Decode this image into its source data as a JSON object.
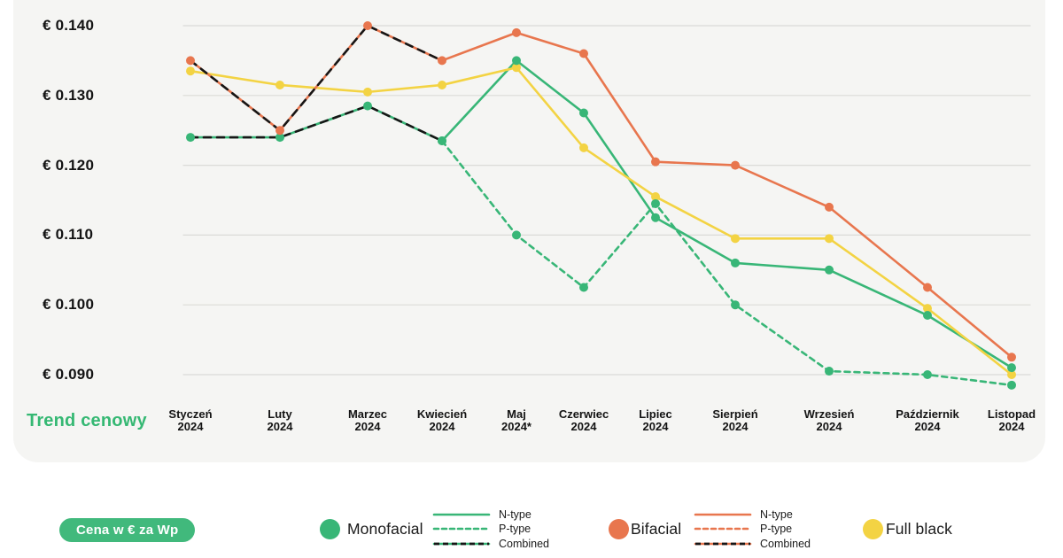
{
  "title": {
    "text": "Trend cenowy",
    "color": "#35b873"
  },
  "unit_pill": {
    "label": "Cena w € za Wp",
    "background": "#41b97c",
    "text_color": "#ffffff"
  },
  "colors": {
    "monofacial": "#38b677",
    "bifacial": "#e8764e",
    "full_black": "#f3d343",
    "combined_overlay": "#161616",
    "gridline": "#dbdbd8",
    "card_background": "#f5f5f3",
    "axis_text": "#131313"
  },
  "y_axis": {
    "labels": [
      "€ 0.140",
      "€ 0.130",
      "€ 0.120",
      "€ 0.110",
      "€ 0.100",
      "€ 0.090"
    ]
  },
  "x_axis": {
    "months": [
      {
        "name": "Styczeń",
        "year": "2024"
      },
      {
        "name": "Luty",
        "year": "2024"
      },
      {
        "name": "Marzec",
        "year": "2024"
      },
      {
        "name": "Kwiecień",
        "year": "2024"
      },
      {
        "name": "Maj",
        "year": "2024*"
      },
      {
        "name": "Czerwiec",
        "year": "2024"
      },
      {
        "name": "Lipiec",
        "year": "2024"
      },
      {
        "name": "Sierpień",
        "year": "2024"
      },
      {
        "name": "Wrzesień",
        "year": "2024"
      },
      {
        "name": "Październik",
        "year": "2024"
      },
      {
        "name": "Listopad",
        "year": "2024"
      }
    ]
  },
  "legend": {
    "groups": [
      {
        "name": "Monofacial",
        "color": "#38b677",
        "entries": [
          {
            "label": "N-type",
            "style": "solid",
            "color": "#38b677"
          },
          {
            "label": "P-type",
            "style": "dashed",
            "color": "#38b677"
          },
          {
            "label": "Combined",
            "style": "combined",
            "color": "#38b677",
            "overlay_color": "#161616"
          }
        ]
      },
      {
        "name": "Bifacial",
        "color": "#e8764e",
        "entries": [
          {
            "label": "N-type",
            "style": "solid",
            "color": "#e8764e"
          },
          {
            "label": "P-type",
            "style": "dashed",
            "color": "#e8764e"
          },
          {
            "label": "Combined",
            "style": "combined",
            "color": "#e8764e",
            "overlay_color": "#161616"
          }
        ]
      },
      {
        "name": "Full black",
        "color": "#f3d343",
        "entries": []
      }
    ]
  },
  "chart_data": {
    "type": "line",
    "title": "Trend cenowy",
    "unit": "Cena w € za Wp",
    "x_categories": [
      "Styczeń 2024",
      "Luty 2024",
      "Marzec 2024",
      "Kwiecień 2024",
      "Maj 2024*",
      "Czerwiec 2024",
      "Lipiec 2024",
      "Sierpień 2024",
      "Wrzesień 2024",
      "Październik 2024",
      "Listopad 2024"
    ],
    "ylim": [
      0.09,
      0.14
    ],
    "y_ticks": [
      0.14,
      0.13,
      0.12,
      0.11,
      0.1,
      0.09
    ],
    "grid": "horizontal",
    "legend_position": "bottom",
    "series": [
      {
        "name": "Monofacial P-type",
        "color": "#38b677",
        "line_style": "dashed",
        "markers": true,
        "values": [
          null,
          null,
          null,
          0.1235,
          0.11,
          0.1025,
          0.1145,
          0.1,
          0.0905,
          0.09,
          0.0885
        ]
      },
      {
        "name": "Monofacial N-type",
        "color": "#38b677",
        "line_style": "solid",
        "markers": true,
        "values": [
          0.124,
          0.124,
          0.1285,
          0.1235,
          0.135,
          0.1275,
          0.1125,
          0.106,
          0.105,
          0.0985,
          0.091
        ]
      },
      {
        "name": "Full black",
        "color": "#f3d343",
        "line_style": "solid",
        "markers": true,
        "values": [
          0.1335,
          0.1315,
          0.1305,
          0.1315,
          0.134,
          0.1225,
          0.1155,
          0.1095,
          0.1095,
          0.0995,
          0.09
        ]
      },
      {
        "name": "Bifacial N-type",
        "color": "#e8764e",
        "line_style": "solid",
        "markers": true,
        "values": [
          0.135,
          0.125,
          0.14,
          0.135,
          0.139,
          0.136,
          0.1205,
          0.12,
          0.114,
          0.1025,
          0.0925
        ]
      },
      {
        "name": "Monofacial Combined",
        "color": "#161616",
        "line_style": "dashed",
        "markers": false,
        "values": [
          0.124,
          0.124,
          0.1285,
          0.1235,
          null,
          null,
          null,
          null,
          null,
          null,
          null
        ]
      },
      {
        "name": "Bifacial Combined",
        "color": "#161616",
        "line_style": "dashed",
        "markers": false,
        "values": [
          0.135,
          0.125,
          0.14,
          0.135,
          null,
          null,
          null,
          null,
          null,
          null,
          null
        ]
      }
    ]
  }
}
